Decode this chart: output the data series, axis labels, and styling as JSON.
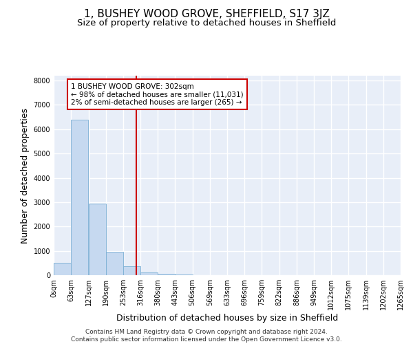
{
  "title": "1, BUSHEY WOOD GROVE, SHEFFIELD, S17 3JZ",
  "subtitle": "Size of property relative to detached houses in Sheffield",
  "xlabel": "Distribution of detached houses by size in Sheffield",
  "ylabel": "Number of detached properties",
  "footer_line1": "Contains HM Land Registry data © Crown copyright and database right 2024.",
  "footer_line2": "Contains public sector information licensed under the Open Government Licence v3.0.",
  "annotation_line1": "1 BUSHEY WOOD GROVE: 302sqm",
  "annotation_line2": "← 98% of detached houses are smaller (11,031)",
  "annotation_line3": "2% of semi-detached houses are larger (265) →",
  "bar_color": "#c6d9f0",
  "bar_edge_color": "#7bafd4",
  "vline_color": "#cc0000",
  "vline_x": 302,
  "bin_edges": [
    0,
    63,
    127,
    190,
    253,
    316,
    380,
    443,
    506,
    569,
    633,
    696,
    759,
    822,
    886,
    949,
    1012,
    1075,
    1139,
    1202,
    1265
  ],
  "bar_heights": [
    500,
    6400,
    2950,
    950,
    380,
    120,
    70,
    30,
    10,
    5,
    3,
    2,
    1,
    1,
    0,
    0,
    0,
    0,
    0,
    0
  ],
  "ylim": [
    0,
    8200
  ],
  "yticks": [
    0,
    1000,
    2000,
    3000,
    4000,
    5000,
    6000,
    7000,
    8000
  ],
  "background_color": "#e8eef8",
  "grid_color": "#ffffff",
  "title_fontsize": 11,
  "subtitle_fontsize": 9.5,
  "tick_fontsize": 7,
  "label_fontsize": 9,
  "footer_fontsize": 6.5
}
